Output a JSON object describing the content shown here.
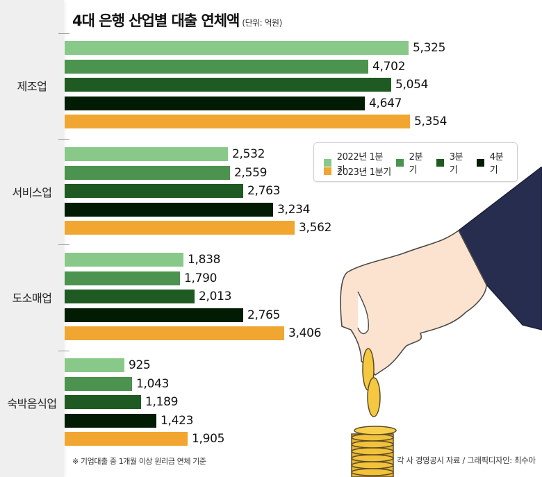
{
  "title": "4대 은행 산업별 대출 연체액",
  "unit": "(단위: 억원)",
  "legend": {
    "row1": [
      {
        "label": "2022년 1분기",
        "color": "#88c98a"
      },
      {
        "label": "2분기",
        "color": "#4b934f"
      },
      {
        "label": "3분기",
        "color": "#1f5a22"
      },
      {
        "label": "4분기",
        "color": "#021c04"
      }
    ],
    "row2": [
      {
        "label": "2023년 1분기",
        "color": "#f0a630"
      }
    ]
  },
  "categories": [
    {
      "label": "제조업",
      "values_text": [
        "5,325",
        "4,702",
        "5,054",
        "4,647",
        "5,354"
      ]
    },
    {
      "label": "서비스업",
      "values_text": [
        "2,532",
        "2,559",
        "2,763",
        "3,234",
        "3,562"
      ]
    },
    {
      "label": "도소매업",
      "values_text": [
        "1,838",
        "1,790",
        "2,013",
        "2,765",
        "3,406"
      ]
    },
    {
      "label": "숙박음식업",
      "values_text": [
        "925",
        "1,043",
        "1,189",
        "1,423",
        "1,905"
      ]
    }
  ],
  "footnote": "※ 기업대출 중 1개월 이상 원리금 연체 기준",
  "source": "각 사 경영공시 자료 / 그래픽디자인: 최수아",
  "chart_data": {
    "type": "bar",
    "orientation": "horizontal",
    "title": "4대 은행 산업별 대출 연체액",
    "subtitle": "(단위: 억원)",
    "categories": [
      "제조업",
      "서비스업",
      "도소매업",
      "숙박음식업"
    ],
    "series": [
      {
        "name": "2022년 1분기",
        "color": "#88c98a",
        "values": [
          5325,
          2532,
          1838,
          925
        ]
      },
      {
        "name": "2022년 2분기",
        "color": "#4b934f",
        "values": [
          4702,
          2559,
          1790,
          1043
        ]
      },
      {
        "name": "2022년 3분기",
        "color": "#1f5a22",
        "values": [
          5054,
          2763,
          2013,
          1189
        ]
      },
      {
        "name": "2022년 4분기",
        "color": "#021c04",
        "values": [
          4647,
          3234,
          2765,
          1423
        ]
      },
      {
        "name": "2023년 1분기",
        "color": "#f0a630",
        "values": [
          5354,
          3562,
          3406,
          1905
        ]
      }
    ],
    "xlabel": "",
    "ylabel": "",
    "unit": "억원",
    "legend_position": "right-inside",
    "grid": false,
    "data_labels": true,
    "annotations": [
      "※ 기업대출 중 1개월 이상 원리금 연체 기준",
      "각 사 경영공시 자료 / 그래픽디자인: 최수아"
    ]
  }
}
